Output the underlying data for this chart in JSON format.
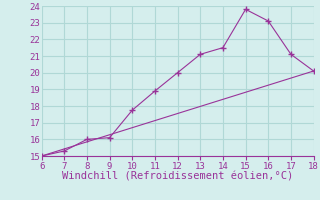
{
  "xlabel": "Windchill (Refroidissement éolien,°C)",
  "line1_x": [
    6,
    7,
    8,
    9,
    10,
    11,
    12,
    13,
    14,
    15,
    16,
    17,
    18
  ],
  "line1_y": [
    15.0,
    15.3,
    16.0,
    16.1,
    17.75,
    18.9,
    20.0,
    21.1,
    21.5,
    23.8,
    23.1,
    21.1,
    20.1
  ],
  "line2_x": [
    6,
    18
  ],
  "line2_y": [
    15.0,
    20.1
  ],
  "line_color": "#993399",
  "marker": "+",
  "bg_color": "#d5eeed",
  "grid_color": "#b0d8d6",
  "xlim": [
    6,
    18
  ],
  "ylim": [
    15,
    24
  ],
  "xticks": [
    6,
    7,
    8,
    9,
    10,
    11,
    12,
    13,
    14,
    15,
    16,
    17,
    18
  ],
  "yticks": [
    15,
    16,
    17,
    18,
    19,
    20,
    21,
    22,
    23,
    24
  ],
  "tick_color": "#993399",
  "label_color": "#993399",
  "tick_fontsize": 6.5,
  "xlabel_fontsize": 7.5
}
